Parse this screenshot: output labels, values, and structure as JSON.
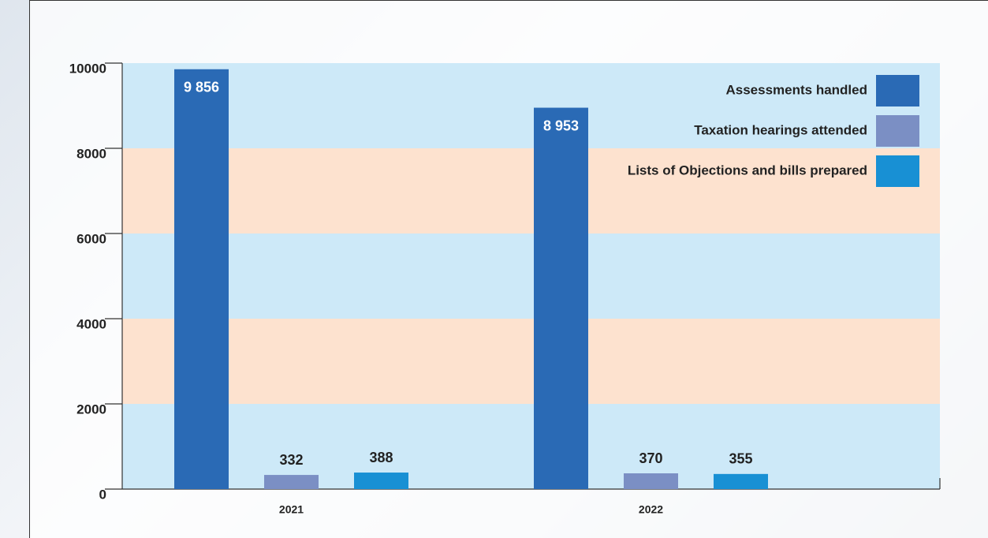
{
  "chart_data": {
    "type": "bar",
    "categories": [
      "2021",
      "2022"
    ],
    "series": [
      {
        "name": "Assessments handled",
        "color": "#2a6ab5",
        "values": [
          9856,
          8953
        ],
        "value_labels": [
          "9 856",
          "8 953"
        ]
      },
      {
        "name": "Taxation hearings attended",
        "color": "#7b8fc4",
        "values": [
          332,
          370
        ]
      },
      {
        "name": "Lists of Objections and bills prepared",
        "color": "#1890d4",
        "values": [
          388,
          355
        ]
      }
    ],
    "ylim": [
      0,
      10000
    ],
    "yticks": [
      0,
      2000,
      4000,
      6000,
      8000,
      10000
    ],
    "band_colors": [
      "#cde9f8",
      "#fde2cf"
    ],
    "legend": "top-right"
  }
}
